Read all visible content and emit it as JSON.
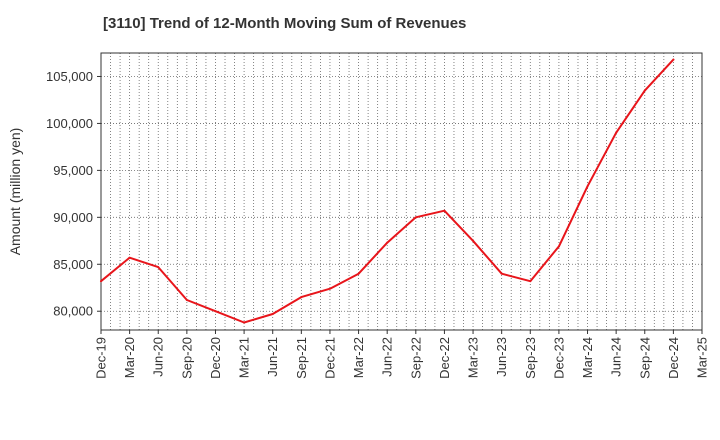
{
  "chart_data": {
    "type": "line",
    "title": "[3110]  Trend of 12-Month Moving Sum of Revenues",
    "xlabel": "",
    "ylabel": "Amount (million yen)",
    "ylim": [
      78000,
      107500
    ],
    "yticks": [
      80000,
      85000,
      90000,
      95000,
      100000,
      105000
    ],
    "ytick_labels": [
      "80,000",
      "85,000",
      "90,000",
      "95,000",
      "100,000",
      "105,000"
    ],
    "categories": [
      "Dec-19",
      "Mar-20",
      "Jun-20",
      "Sep-20",
      "Dec-20",
      "Mar-21",
      "Jun-21",
      "Sep-21",
      "Dec-21",
      "Mar-22",
      "Jun-22",
      "Sep-22",
      "Dec-22",
      "Mar-23",
      "Jun-23",
      "Sep-23",
      "Dec-23",
      "Mar-24",
      "Jun-24",
      "Sep-24",
      "Dec-24",
      "Mar-25"
    ],
    "grid": true,
    "series": [
      {
        "color": "#e8151b",
        "values": [
          83200,
          85700,
          84700,
          81200,
          80000,
          78800,
          79700,
          81500,
          82400,
          84000,
          87300,
          90000,
          90700,
          87500,
          84000,
          83200,
          86900,
          93300,
          99000,
          103500,
          106800,
          null
        ]
      }
    ]
  }
}
